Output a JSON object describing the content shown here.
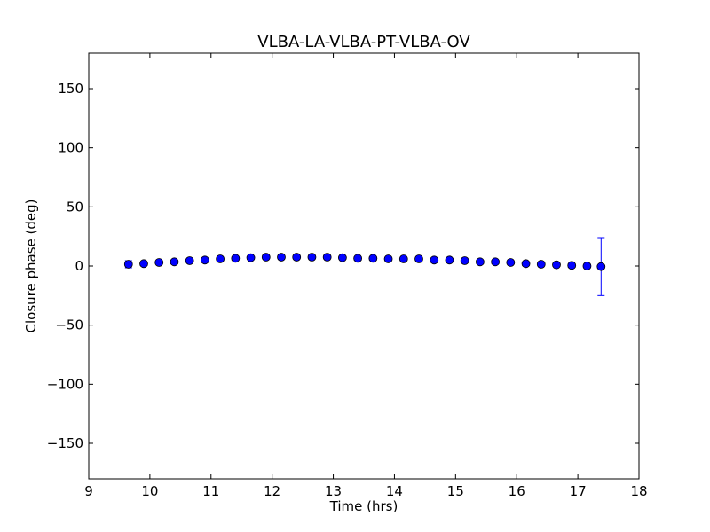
{
  "chart_data": {
    "type": "scatter",
    "title": "VLBA-LA-VLBA-PT-VLBA-OV",
    "xlabel": "Time (hrs)",
    "ylabel": "Closure phase (deg)",
    "xlim": [
      9,
      18
    ],
    "ylim": [
      -180,
      180
    ],
    "xticks": [
      9,
      10,
      11,
      12,
      13,
      14,
      15,
      16,
      17,
      18
    ],
    "xtick_labels": [
      "9",
      "10",
      "11",
      "12",
      "13",
      "14",
      "15",
      "16",
      "17",
      "18"
    ],
    "yticks": [
      -150,
      -100,
      -50,
      0,
      50,
      100,
      150
    ],
    "ytick_labels": [
      "−150",
      "−100",
      "−50",
      "0",
      "50",
      "100",
      "150"
    ],
    "grid": false,
    "marker_color": "#0000ff",
    "series": [
      {
        "x": [
          9.65,
          9.9,
          10.15,
          10.4,
          10.65,
          10.9,
          11.15,
          11.4,
          11.65,
          11.9,
          12.15,
          12.4,
          12.65,
          12.9,
          13.15,
          13.4,
          13.65,
          13.9,
          14.15,
          14.4,
          14.65,
          14.9,
          15.15,
          15.4,
          15.65,
          15.9,
          16.15,
          16.4,
          16.65,
          16.9,
          17.15,
          17.38
        ],
        "y": [
          1.5,
          2,
          3,
          3.5,
          4.5,
          5,
          6,
          6.5,
          7,
          7.5,
          7.5,
          7.5,
          7.5,
          7.5,
          7,
          6.5,
          6.5,
          6,
          6,
          6,
          5,
          5,
          4.5,
          3.5,
          3.5,
          3,
          2,
          1.5,
          1,
          0.5,
          0,
          -0.5
        ],
        "yerr": [
          3,
          0.5,
          0.5,
          0.5,
          0.5,
          0.5,
          0.5,
          0.5,
          0.5,
          0.5,
          0.5,
          0.5,
          0.5,
          0.5,
          0.5,
          0.5,
          0.5,
          0.5,
          0.5,
          0.5,
          0.5,
          0.5,
          0.5,
          0.5,
          0.5,
          0.5,
          0.5,
          0.5,
          0.5,
          0.5,
          0.5,
          24.5
        ]
      }
    ]
  }
}
